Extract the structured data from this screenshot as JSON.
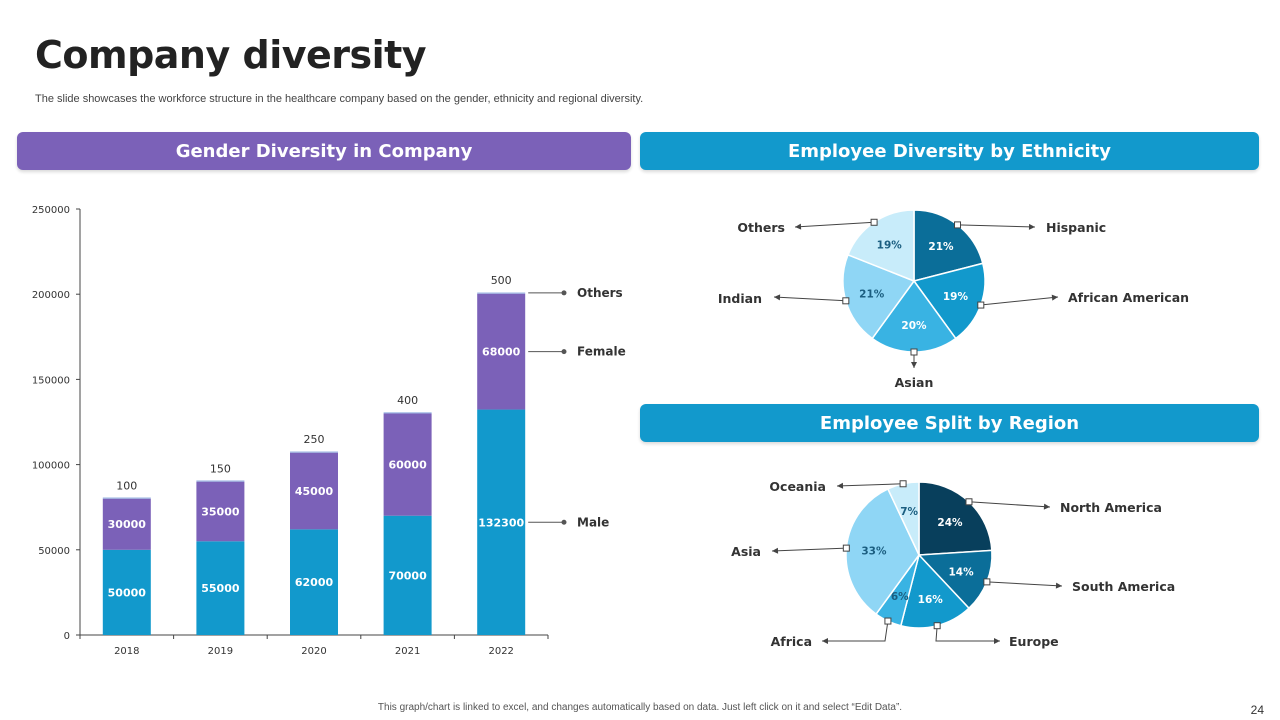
{
  "title": "Company diversity",
  "subtitle": "The slide showcases the workforce structure in the healthcare company based on the gender, ethnicity and regional diversity.",
  "footer": "This graph/chart is linked to excel, and changes automatically based on data. Just left click on it and select “Edit Data”.",
  "page_number": "24",
  "colors": {
    "male": "#1299cc",
    "female": "#7b61b8",
    "others": "#9db7e3"
  },
  "chart_data": [
    {
      "type": "bar",
      "stacked": true,
      "title": "Gender Diversity in Company",
      "categories": [
        "2018",
        "2019",
        "2020",
        "2021",
        "2022"
      ],
      "series": [
        {
          "name": "Male",
          "values": [
            50000,
            55000,
            62000,
            70000,
            132300
          ],
          "color": "#1299cc"
        },
        {
          "name": "Female",
          "values": [
            30000,
            35000,
            45000,
            60000,
            68000
          ],
          "color": "#7b61b8"
        },
        {
          "name": "Others",
          "values": [
            100,
            150,
            250,
            400,
            500
          ],
          "color": "#9db7e3"
        }
      ],
      "y_ticks": [
        "0",
        "50000",
        "100000",
        "150000",
        "200000",
        "250000"
      ],
      "ylim": [
        0,
        250000
      ],
      "legend_position": "right"
    },
    {
      "type": "pie",
      "title": "Employee Diversity by Ethnicity",
      "labels": [
        "Hispanic",
        "African American",
        "Asian",
        "Indian",
        "Others"
      ],
      "values": [
        21,
        19,
        20,
        21,
        19
      ],
      "value_labels": [
        "21%",
        "19%",
        "20%",
        "21%",
        "19%"
      ],
      "colors": [
        "#0b6e99",
        "#1299cc",
        "#39b3e3",
        "#8fd6f5",
        "#c8ecfa"
      ]
    },
    {
      "type": "pie",
      "title": "Employee Split by Region",
      "labels": [
        "North America",
        "South America",
        "Europe",
        "Africa",
        "Asia",
        "Oceania"
      ],
      "values": [
        24,
        14,
        16,
        6,
        33,
        7
      ],
      "value_labels": [
        "24%",
        "14%",
        "16%",
        "6%",
        "33%",
        "7%"
      ],
      "colors": [
        "#083f5c",
        "#0b6e99",
        "#1299cc",
        "#39b3e3",
        "#8fd6f5",
        "#c8ecfa"
      ]
    }
  ]
}
